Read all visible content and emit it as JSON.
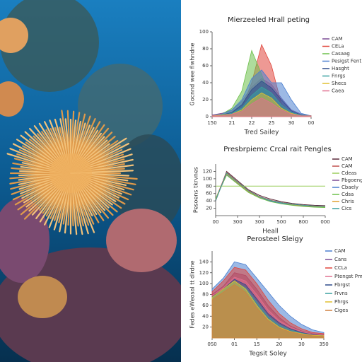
{
  "chart_data": [
    {
      "type": "area",
      "title": "Mierzeeled Hrall peting",
      "y_label": "Gocnnd wee flwhndne",
      "x_label": "Tred Sailey",
      "x": [
        0,
        1,
        2,
        3,
        4,
        5,
        6,
        7,
        8,
        9,
        10
      ],
      "xlim": [
        0,
        10
      ],
      "xticks": [
        {
          "value": 0,
          "label": "150"
        },
        {
          "value": 2,
          "label": "21"
        },
        {
          "value": 4,
          "label": "22"
        },
        {
          "value": 6,
          "label": "25"
        },
        {
          "value": 8,
          "label": "30"
        },
        {
          "value": 10,
          "label": "00"
        }
      ],
      "ylim": [
        0,
        100
      ],
      "yticks": [
        0,
        20,
        40,
        60,
        80,
        100
      ],
      "series": [
        {
          "name": "CAM",
          "color": "#7b4b94",
          "values": [
            2,
            4,
            8,
            18,
            35,
            45,
            38,
            22,
            8,
            3,
            1
          ]
        },
        {
          "name": "CELa",
          "color": "#e0463c",
          "values": [
            1,
            2,
            4,
            10,
            40,
            85,
            60,
            15,
            4,
            2,
            1
          ]
        },
        {
          "name": "Casaag",
          "color": "#6cc04a",
          "values": [
            1,
            3,
            10,
            30,
            78,
            50,
            20,
            6,
            2,
            1,
            1
          ]
        },
        {
          "name": "Pesigst Fent",
          "color": "#4a7fd0",
          "values": [
            1,
            3,
            8,
            20,
            45,
            55,
            40,
            40,
            20,
            4,
            1
          ]
        },
        {
          "name": "Hasght",
          "color": "#2e4a8a",
          "values": [
            1,
            2,
            5,
            14,
            32,
            42,
            34,
            20,
            7,
            2,
            1
          ]
        },
        {
          "name": "Fnrgs",
          "color": "#3aa0a0",
          "values": [
            1,
            2,
            4,
            10,
            25,
            35,
            28,
            14,
            5,
            2,
            1
          ]
        },
        {
          "name": "Shecs",
          "color": "#e0c030",
          "values": [
            1,
            2,
            3,
            8,
            20,
            28,
            22,
            10,
            4,
            1,
            1
          ]
        },
        {
          "name": "Caea",
          "color": "#e07090",
          "values": [
            1,
            1,
            3,
            6,
            15,
            22,
            16,
            8,
            3,
            1,
            1
          ]
        }
      ]
    },
    {
      "type": "line",
      "title": "Presbrpiemc Crcal rait Pengles",
      "y_label": "Pesoens tkrvnes",
      "x_label": "Heall",
      "x": [
        0,
        1,
        2,
        3,
        4,
        5,
        6,
        7,
        8,
        9,
        10
      ],
      "xlim": [
        0,
        10
      ],
      "xticks": [
        {
          "value": 0,
          "label": "00"
        },
        {
          "value": 2,
          "label": "300"
        },
        {
          "value": 4,
          "label": "300"
        },
        {
          "value": 6,
          "label": "500"
        },
        {
          "value": 8,
          "label": "800"
        },
        {
          "value": 10,
          "label": "000"
        }
      ],
      "ylim": [
        0,
        140
      ],
      "yticks": [
        20,
        40,
        60,
        80,
        100,
        120
      ],
      "series": [
        {
          "name": "CAM",
          "color": "#5a2a3a",
          "values": [
            40,
            120,
            95,
            70,
            55,
            45,
            38,
            33,
            30,
            28,
            27
          ]
        },
        {
          "name": "CAM",
          "color": "#c0504d",
          "values": [
            45,
            118,
            92,
            68,
            52,
            42,
            36,
            31,
            28,
            26,
            25
          ]
        },
        {
          "name": "Cdeas",
          "color": "#9acd5a",
          "values": [
            80,
            80,
            80,
            80,
            80,
            80,
            80,
            80,
            80,
            80,
            80
          ]
        },
        {
          "name": "Pbgoeng",
          "color": "#7b4b94",
          "values": [
            42,
            115,
            90,
            66,
            50,
            40,
            34,
            30,
            27,
            25,
            24
          ]
        },
        {
          "name": "Cbaely",
          "color": "#4a7fd0",
          "values": [
            44,
            112,
            88,
            64,
            49,
            39,
            33,
            29,
            26,
            24,
            23
          ]
        },
        {
          "name": "Cdsa",
          "color": "#6cc04a",
          "values": [
            46,
            110,
            86,
            63,
            48,
            38,
            32,
            28,
            25,
            23,
            22
          ]
        },
        {
          "name": "Chris",
          "color": "#e0a030",
          "values": [
            43,
            114,
            89,
            65,
            50,
            41,
            35,
            30,
            27,
            25,
            24
          ]
        },
        {
          "name": "Cics",
          "color": "#3aa0a0",
          "values": [
            41,
            116,
            91,
            67,
            51,
            41,
            35,
            31,
            28,
            26,
            25
          ]
        }
      ]
    },
    {
      "type": "area",
      "title": "Perosteel Sleigy",
      "y_label": "Fedes eWeosal tt dlrdne",
      "x_label": "Tegsit Soley",
      "x": [
        0,
        1,
        2,
        3,
        4,
        5,
        6,
        7,
        8,
        9,
        10
      ],
      "xlim": [
        0,
        10
      ],
      "xticks": [
        {
          "value": 0,
          "label": "0S0"
        },
        {
          "value": 2,
          "label": "01"
        },
        {
          "value": 4,
          "label": "15"
        },
        {
          "value": 6,
          "label": "20"
        },
        {
          "value": 8,
          "label": "30"
        },
        {
          "value": 10,
          "label": "350"
        }
      ],
      "ylim": [
        0,
        160
      ],
      "yticks": [
        20,
        40,
        60,
        80,
        100,
        120,
        140
      ],
      "series": [
        {
          "name": "CAM",
          "color": "#4a7fd0",
          "values": [
            90,
            110,
            140,
            135,
            110,
            85,
            60,
            40,
            25,
            15,
            10
          ]
        },
        {
          "name": "Cans",
          "color": "#7b4b94",
          "values": [
            80,
            95,
            120,
            115,
            90,
            60,
            38,
            22,
            13,
            8,
            6
          ]
        },
        {
          "name": "CCLa",
          "color": "#e0463c",
          "values": [
            85,
            105,
            130,
            125,
            100,
            70,
            45,
            28,
            17,
            10,
            8
          ]
        },
        {
          "name": "Ptengst Pmg",
          "color": "#e07090",
          "values": [
            78,
            92,
            112,
            105,
            80,
            52,
            32,
            20,
            12,
            7,
            5
          ]
        },
        {
          "name": "Fbrgst",
          "color": "#2e4a8a",
          "values": [
            76,
            90,
            108,
            98,
            72,
            45,
            28,
            17,
            10,
            6,
            4
          ]
        },
        {
          "name": "Frvns",
          "color": "#3aa0a0",
          "values": [
            74,
            88,
            104,
            92,
            66,
            40,
            24,
            15,
            9,
            5,
            4
          ]
        },
        {
          "name": "Phrgs",
          "color": "#e0c030",
          "values": [
            75,
            90,
            105,
            90,
            60,
            35,
            20,
            12,
            8,
            5,
            4
          ]
        },
        {
          "name": "Ciges",
          "color": "#d08040",
          "values": [
            70,
            84,
            98,
            84,
            55,
            32,
            18,
            11,
            7,
            4,
            3
          ]
        }
      ]
    }
  ]
}
